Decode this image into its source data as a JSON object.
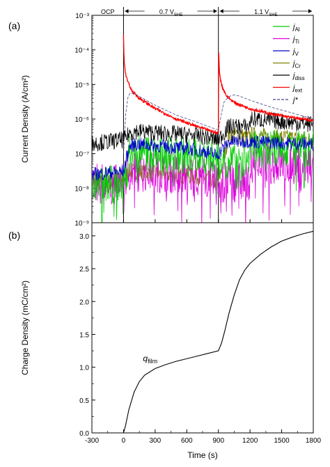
{
  "chart_data": [
    {
      "panel_label": "(a)",
      "type": "line",
      "ylabel": "Current Density (A/cm²)",
      "yscale": "log",
      "ylim": [
        1e-09,
        0.001
      ],
      "ytick_labels": [
        "10⁻⁹",
        "10⁻⁸",
        "10⁻⁷",
        "10⁻⁶",
        "10⁻⁵",
        "10⁻⁴",
        "10⁻³"
      ],
      "xlim": [
        -300,
        1800
      ],
      "regions": [
        {
          "label": "OCP",
          "start": -300,
          "end": 0
        },
        {
          "label": "0.7 V",
          "sub": "SHE",
          "start": 0,
          "end": 900
        },
        {
          "label": "1.1 V",
          "sub": "SHE",
          "start": 900,
          "end": 1800
        }
      ],
      "legend_position": "top-right",
      "series": [
        {
          "name": "j",
          "sub": "Al",
          "color": "#00cc00",
          "dash": false,
          "x": [
            -300,
            -150,
            0,
            30,
            60,
            120,
            300,
            600,
            800,
            880,
            900,
            1190,
            1210,
            1400,
            1600,
            1800
          ],
          "y": [
            1.2e-08,
            1.3e-08,
            1.3e-08,
            3e-08,
            1e-07,
            1.1e-07,
            1e-07,
            9e-08,
            8e-08,
            1e-07,
            6e-08,
            7e-08,
            1.3e-07,
            1.4e-07,
            1.4e-07,
            1.3e-07
          ]
        },
        {
          "name": "j",
          "sub": "Ti",
          "color": "#dd00dd",
          "dash": false,
          "x": [
            -300,
            -150,
            0,
            30,
            60,
            120,
            300,
            600,
            800,
            880,
            900,
            1190,
            1210,
            1400,
            1600,
            1800
          ],
          "y": [
            1.3e-08,
            1.3e-08,
            1.3e-08,
            2.5e-08,
            3e-08,
            3e-08,
            3e-08,
            2.5e-08,
            2e-08,
            1.2e-08,
            1.5e-08,
            1.5e-08,
            5e-08,
            5e-08,
            5e-08,
            5e-08
          ]
        },
        {
          "name": "j",
          "sub": "V",
          "color": "#0000cc",
          "dash": false,
          "x": [
            -300,
            -150,
            0,
            30,
            60,
            120,
            300,
            600,
            800,
            880,
            900,
            1000,
            1190,
            1210,
            1400,
            1600,
            1800
          ],
          "y": [
            2.5e-08,
            2.8e-08,
            3e-08,
            8e-08,
            1.6e-07,
            1.9e-07,
            1.7e-07,
            1.4e-07,
            1.1e-07,
            9e-08,
            1e-07,
            2.2e-07,
            2.3e-07,
            2.2e-07,
            2.1e-07,
            2e-07,
            1.9e-07
          ]
        },
        {
          "name": "j",
          "sub": "Cr",
          "color": "#808000",
          "dash": false,
          "x": [
            -300,
            -150,
            0,
            30,
            60,
            120,
            300,
            600,
            800,
            880,
            900,
            1000,
            1100,
            1190,
            1210,
            1400,
            1600,
            1800
          ],
          "y": [
            1.4e-08,
            1.5e-08,
            1.6e-08,
            2.5e-08,
            3e-08,
            3e-08,
            2.6e-08,
            2.3e-08,
            2e-08,
            1.4e-08,
            1.5e-08,
            3.5e-07,
            3.5e-07,
            2.8e-07,
            3.5e-07,
            3e-07,
            2.8e-07,
            2.5e-07
          ]
        },
        {
          "name": "j",
          "sub": "diss",
          "color": "#000000",
          "dash": false,
          "x": [
            -300,
            -150,
            0,
            30,
            60,
            120,
            300,
            600,
            800,
            880,
            900,
            1000,
            1190,
            1210,
            1400,
            1600,
            1800
          ],
          "y": [
            2e-07,
            2.2e-07,
            2.5e-07,
            3e-07,
            4e-07,
            4.5e-07,
            4e-07,
            3.5e-07,
            3e-07,
            2.5e-07,
            2.5e-07,
            6e-07,
            6e-07,
            1e-06,
            9e-07,
            8e-07,
            7e-07
          ]
        },
        {
          "name": "j",
          "sub": "ext",
          "color": "#ff0000",
          "dash": false,
          "x": [
            0,
            2,
            5,
            10,
            20,
            40,
            80,
            150,
            300,
            500,
            700,
            880,
            900,
            902,
            905,
            910,
            920,
            940,
            980,
            1050,
            1200,
            1400,
            1600,
            1800
          ],
          "y": [
            0.00028,
            0.00012,
            6e-05,
            3.5e-05,
            2e-05,
            1.2e-05,
            6.5e-06,
            4e-06,
            2e-06,
            1e-06,
            6e-07,
            4e-07,
            4e-07,
            0.00016,
            5e-05,
            2.5e-05,
            1.3e-05,
            8e-06,
            4.5e-06,
            3e-06,
            2e-06,
            1.4e-06,
            1.1e-06,
            9e-07
          ]
        },
        {
          "name": "j*",
          "sub": "",
          "color": "#444488",
          "dash": true,
          "x": [
            0,
            10,
            20,
            40,
            60,
            100,
            150,
            300,
            500,
            700,
            880,
            900,
            950,
            1000,
            1050,
            1100,
            1200,
            1400,
            1600,
            1800
          ],
          "y": [
            1e-07,
            3e-07,
            1.3e-06,
            4e-06,
            5.5e-06,
            5.5e-06,
            4.5e-06,
            2.5e-06,
            1.3e-06,
            8e-07,
            5e-07,
            5e-07,
            3e-06,
            4.5e-06,
            5e-06,
            4.6e-06,
            3.5e-06,
            2.2e-06,
            1.5e-06,
            1e-06
          ]
        }
      ]
    },
    {
      "panel_label": "(b)",
      "type": "line",
      "xlabel": "Time (s)",
      "ylabel": "Charge Density (mC/cm²)",
      "xlim": [
        -300,
        1800
      ],
      "ylim": [
        0,
        3.2
      ],
      "xticks": [
        -300,
        0,
        300,
        600,
        900,
        1200,
        1500,
        1800
      ],
      "yticks": [
        0.0,
        0.5,
        1.0,
        1.5,
        2.0,
        2.5,
        3.0
      ],
      "xtick_labels": [
        "-300",
        "0",
        "300",
        "600",
        "900",
        "1200",
        "1500",
        "1800"
      ],
      "ytick_labels": [
        "0.0",
        "0.5",
        "1.0",
        "1.5",
        "2.0",
        "2.5",
        "3.0"
      ],
      "annotation": {
        "text": "q",
        "sub": "film",
        "x": 330,
        "y": 1.05
      },
      "series": [
        {
          "name": "q",
          "sub": "film",
          "color": "#000000",
          "x": [
            0,
            20,
            50,
            100,
            150,
            200,
            300,
            400,
            500,
            600,
            700,
            800,
            900,
            930,
            960,
            1000,
            1050,
            1100,
            1150,
            1200,
            1300,
            1400,
            1500,
            1600,
            1700,
            1800
          ],
          "y": [
            0,
            0.12,
            0.35,
            0.62,
            0.78,
            0.88,
            0.98,
            1.04,
            1.09,
            1.13,
            1.17,
            1.21,
            1.25,
            1.37,
            1.55,
            1.82,
            2.1,
            2.33,
            2.48,
            2.58,
            2.72,
            2.83,
            2.92,
            2.98,
            3.03,
            3.07
          ]
        }
      ]
    }
  ]
}
